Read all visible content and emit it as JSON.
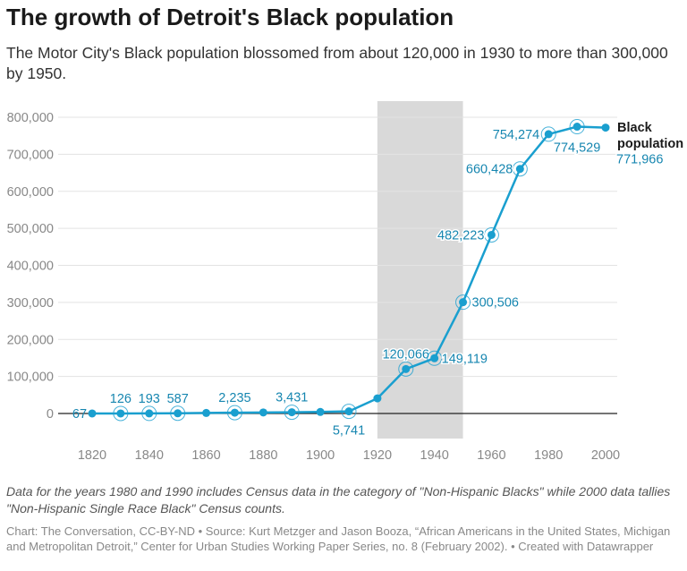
{
  "chart_data": {
    "type": "line",
    "title": "The growth of Detroit's Black population",
    "subtitle": "The Motor City's Black population blossomed from about 120,000 in 1930 to more than 300,000 by 1950.",
    "series": [
      {
        "name": "Black population",
        "x": [
          1820,
          1830,
          1840,
          1850,
          1860,
          1870,
          1880,
          1890,
          1900,
          1910,
          1920,
          1930,
          1940,
          1950,
          1960,
          1970,
          1980,
          1990,
          2000
        ],
        "values": [
          67,
          126,
          193,
          587,
          1400,
          2235,
          2800,
          3431,
          4100,
          5741,
          40800,
          120066,
          149119,
          300506,
          482223,
          660428,
          754274,
          774529,
          771966
        ],
        "labels": [
          "67",
          "126",
          "193",
          "587",
          null,
          "2,235",
          null,
          "3,431",
          null,
          "5,741",
          null,
          "120,066",
          "149,119",
          "300,506",
          "482,223",
          "660,428",
          "754,274",
          "774,529",
          "771,966"
        ]
      }
    ],
    "xticks": [
      "1820",
      "1840",
      "1860",
      "1880",
      "1900",
      "1920",
      "1940",
      "1960",
      "1980",
      "2000"
    ],
    "yticks": [
      "0",
      "100,000",
      "200,000",
      "300,000",
      "400,000",
      "500,000",
      "600,000",
      "700,000",
      "800,000"
    ],
    "xlim": [
      1820,
      2000
    ],
    "ylim": [
      0,
      800000
    ],
    "highlight_range": [
      1920,
      1950
    ],
    "grid": "horizontal",
    "legend": "end-of-line label",
    "colors": {
      "line": "#1a9fcf",
      "label": "#1686b0",
      "shade": "#d9d9d9",
      "grid": "#e3e3e3",
      "axis_text": "#888888"
    }
  },
  "notes": "Data for the years 1980 and 1990 includes Census data in the category of \"Non-Hispanic Blacks\" while 2000 data tallies \"Non-Hispanic Single Race Black\" Census counts.",
  "source": "Chart: The Conversation, CC-BY-ND • Source: Kurt Metzger and Jason Booza, “African Americans in the United States, Michigan and Metropolitan Detroit,” Center for Urban Studies Working Paper Series, no. 8 (February 2002). • Created with Datawrapper"
}
